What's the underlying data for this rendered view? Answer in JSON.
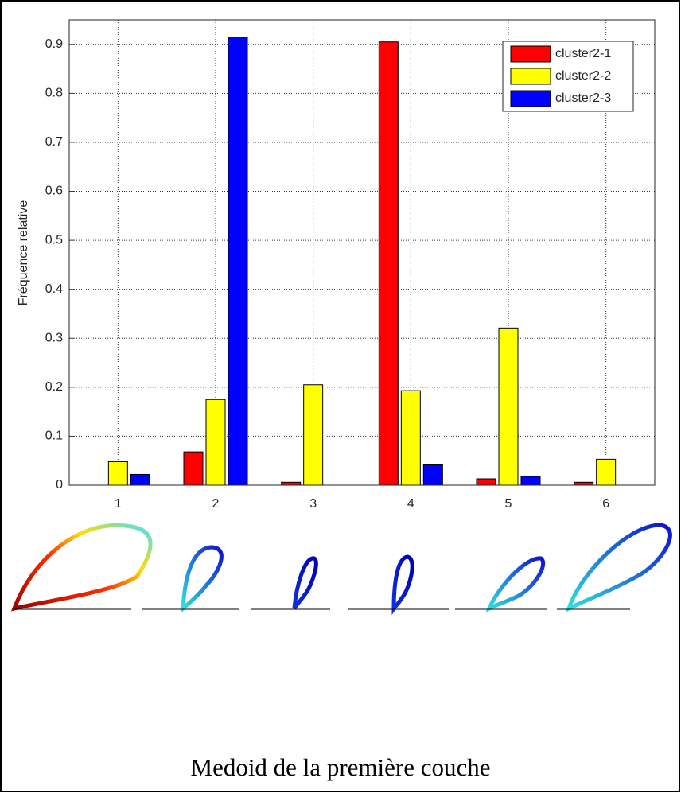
{
  "chart_data": {
    "type": "bar",
    "y_label": "Fréquence relative",
    "caption": "Medoid de la première couche",
    "x": [
      1,
      2,
      3,
      4,
      5,
      6
    ],
    "xlim": [
      0.5,
      6.5
    ],
    "xticks": [
      1,
      2,
      3,
      4,
      5,
      6
    ],
    "ylim": [
      0,
      0.95
    ],
    "yticks": [
      0,
      0.1,
      0.2,
      0.3,
      0.4,
      0.5,
      0.6,
      0.7,
      0.8,
      0.9
    ],
    "grid": true,
    "legend": "upper right",
    "series": [
      {
        "name": "cluster2-1",
        "color": "#ff0000",
        "values": [
          0,
          0.068,
          0.006,
          0.905,
          0.013,
          0.006
        ]
      },
      {
        "name": "cluster2-2",
        "color": "#ffff00",
        "values": [
          0.048,
          0.175,
          0.205,
          0.193,
          0.321,
          0.053
        ]
      },
      {
        "name": "cluster2-3",
        "color": "#0000ff",
        "values": [
          0.022,
          0.915,
          0,
          0.043,
          0.018,
          0
        ]
      }
    ]
  }
}
